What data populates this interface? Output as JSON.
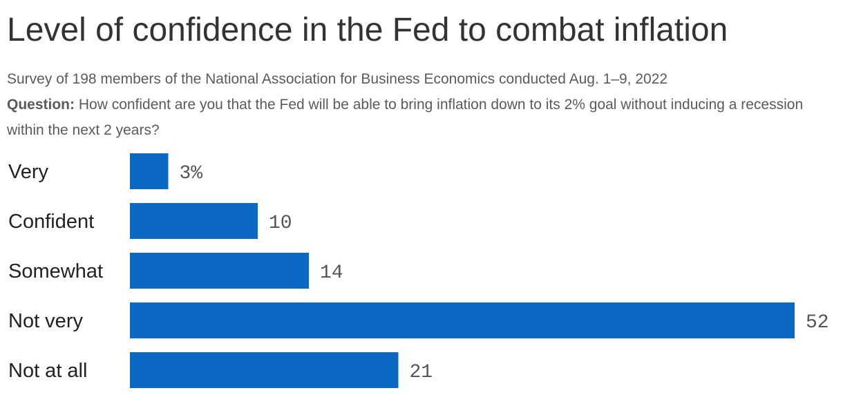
{
  "title": "Level of confidence in the Fed to combat inflation",
  "subtitle": "Survey of 198 members of the National Association for Business Economics conducted Aug. 1–9, 2022",
  "question_label": "Question:",
  "question_text": "How confident are you that the Fed will be able to bring inflation down to its 2% goal without inducing a recession within the next 2 years?",
  "colors": {
    "bar": "#0b68c3"
  },
  "chart_data": {
    "type": "bar",
    "orientation": "horizontal",
    "categories": [
      "Very",
      "Confident",
      "Somewhat",
      "Not very",
      "Not at all"
    ],
    "values": [
      3,
      10,
      14,
      52,
      21
    ],
    "value_labels": [
      "3%",
      "10",
      "14",
      "52",
      "21"
    ],
    "unit": "%",
    "xlim": [
      0,
      52
    ],
    "grid": false,
    "legend": "none"
  }
}
